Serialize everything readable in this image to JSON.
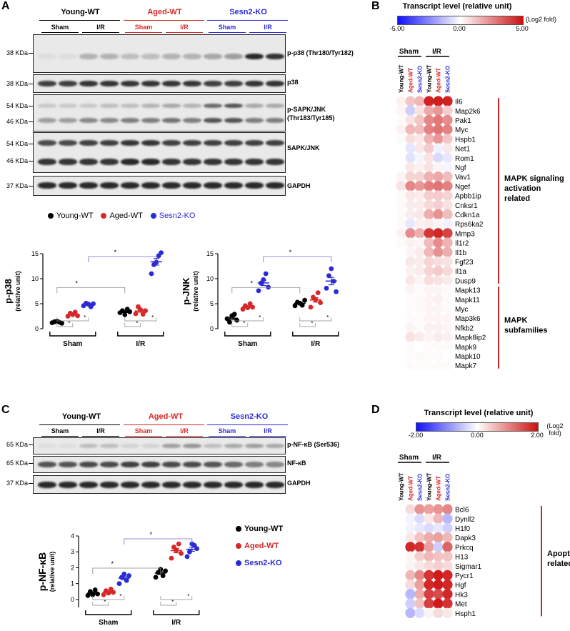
{
  "panel_letters": {
    "a": "A",
    "b": "B",
    "c": "C",
    "d": "D"
  },
  "colors": {
    "young": "#000000",
    "aged": "#d62828",
    "ko": "#2b2bd6"
  },
  "panel_a": {
    "groups": [
      "Young-WT",
      "Aged-WT",
      "Sesn2-KO"
    ],
    "conditions": [
      "Sham",
      "I/R"
    ],
    "blots": [
      {
        "kda": [
          "38 KDa"
        ],
        "label": "p-p38 (Thr180/Tyr182)"
      },
      {
        "kda": [
          "38 KDa"
        ],
        "label": "p38"
      },
      {
        "kda": [
          "54 KDa",
          "46 KDa"
        ],
        "label": "p-SAPK/JNK",
        "label2": "(Thr183/Tyr185)"
      },
      {
        "kda": [
          "54 KDa",
          "46 KDa"
        ],
        "label": "SAPK/JNK"
      },
      {
        "kda": [
          "37 KDa"
        ],
        "label": "GAPDH"
      }
    ],
    "legend": [
      "Young-WT",
      "Aged-WT",
      "Sesn2-KO"
    ]
  },
  "panel_c": {
    "groups": [
      "Young-WT",
      "Aged-WT",
      "Sesn2-KO"
    ],
    "conditions": [
      "Sham",
      "I/R"
    ],
    "blots": [
      {
        "kda": "65 KDa",
        "label": "p-NF-κB (Ser536)"
      },
      {
        "kda": "65 KDa",
        "label": "NF-κB"
      },
      {
        "kda": "37 KDa",
        "label": "GAPDH"
      }
    ],
    "legend": [
      "Young-WT",
      "Aged-WT",
      "Sesn2-KO"
    ]
  },
  "chart_data": [
    {
      "type": "scatter",
      "title": "p-p38",
      "ylabel": "p-p38 (relative unit)",
      "ylim": [
        0,
        15
      ],
      "yticks": [
        "0",
        "5",
        "10",
        "15"
      ],
      "categories": [
        "Sham",
        "I/R"
      ],
      "series": [
        {
          "name": "Young-WT",
          "sham": [
            1.2,
            1.4,
            1.5,
            1.3,
            1.1
          ],
          "ir": [
            3.2,
            3.6,
            2.8,
            3.9,
            3.4
          ]
        },
        {
          "name": "Aged-WT",
          "sham": [
            2.5,
            3.1,
            2.8,
            3.3,
            2.6
          ],
          "ir": [
            3.0,
            4.4,
            3.8,
            2.9,
            3.6
          ]
        },
        {
          "name": "Sesn2-KO",
          "sham": [
            4.6,
            5.1,
            4.9,
            4.4,
            5.0
          ],
          "ir": [
            11.0,
            12.8,
            13.3,
            14.6,
            15.2
          ]
        }
      ],
      "sig": "*"
    },
    {
      "type": "scatter",
      "title": "p-JNK",
      "ylabel": "p-JNK (relative unit)",
      "ylim": [
        0,
        15
      ],
      "yticks": [
        "0",
        "5",
        "10",
        "15"
      ],
      "categories": [
        "Sham",
        "I/R"
      ],
      "series": [
        {
          "name": "Young-WT",
          "sham": [
            2.0,
            1.3,
            2.6,
            2.9,
            1.7
          ],
          "ir": [
            4.6,
            5.3,
            5.1,
            4.7,
            5.7
          ]
        },
        {
          "name": "Aged-WT",
          "sham": [
            3.9,
            4.6,
            4.2,
            5.0,
            4.3
          ],
          "ir": [
            4.3,
            6.3,
            5.8,
            7.2,
            5.2
          ]
        },
        {
          "name": "Sesn2-KO",
          "sham": [
            7.6,
            9.1,
            9.8,
            11.0,
            8.3
          ],
          "ir": [
            8.1,
            10.6,
            12.0,
            9.5,
            7.4
          ]
        }
      ],
      "sig": "*"
    },
    {
      "type": "scatter",
      "title": "p-NF-κB",
      "ylabel": "p-NF-κB (relative unit)",
      "ylim": [
        -0.5,
        4
      ],
      "yticks": [
        "0",
        "1",
        "2",
        "3",
        "4"
      ],
      "categories": [
        "Sham",
        "I/R"
      ],
      "series": [
        {
          "name": "Young-WT",
          "sham": [
            0.25,
            0.5,
            0.3,
            0.6,
            0.35
          ],
          "ir": [
            1.4,
            1.7,
            1.9,
            1.5,
            1.8
          ]
        },
        {
          "name": "Aged-WT",
          "sham": [
            0.3,
            0.55,
            0.4,
            0.65,
            0.45
          ],
          "ir": [
            2.6,
            3.3,
            3.1,
            3.5,
            2.9
          ]
        },
        {
          "name": "Sesn2-KO",
          "sham": [
            1.0,
            1.4,
            1.6,
            1.2,
            1.5
          ],
          "ir": [
            2.7,
            3.0,
            3.5,
            3.4,
            3.2
          ]
        }
      ],
      "sig": "*"
    },
    {
      "type": "heatmap",
      "title": "Transcript level (relative unit)",
      "unit": "(Log2 fold)",
      "scale_labels": [
        "-5.00",
        "0.00",
        "5.00"
      ],
      "vmin": -5,
      "vmax": 5,
      "columns": [
        "Young-WT",
        "Aged-WT",
        "Sesn2-KO",
        "Young-WT",
        "Aged-WT",
        "Sesn2-KO"
      ],
      "column_groups": [
        "Sham",
        "I/R"
      ],
      "rows": [
        "Il6",
        "Map2k6",
        "Pak1",
        "Myc",
        "Hspb1",
        "Net1",
        "Rom1",
        "Ngf",
        "Vav1",
        "Ngef",
        "Apbb1ip",
        "Cnksr1",
        "Cdkn1a",
        "Rps6ka2",
        "Mmp3",
        "Il1r2",
        "Il1b",
        "Fgf23",
        "Il1a",
        "Dusp9",
        "Mapk13",
        "Mapk11",
        "Myc",
        "Map3k6",
        "Nfkb2",
        "Mapk8ip2",
        "Mapk9",
        "Mapk10",
        "Mapk7"
      ],
      "values": [
        [
          0.3,
          1.2,
          1.5,
          4.6,
          4.7,
          4.6
        ],
        [
          0.2,
          -1.0,
          0.6,
          1.8,
          2.2,
          1.0
        ],
        [
          0.1,
          0.6,
          1.2,
          2.5,
          2.8,
          2.4
        ],
        [
          0.3,
          1.5,
          1.4,
          2.6,
          2.9,
          2.6
        ],
        [
          0.1,
          0.7,
          0.5,
          1.6,
          2.2,
          1.2
        ],
        [
          0.0,
          -0.5,
          0.5,
          1.1,
          -0.3,
          0.5
        ],
        [
          0.0,
          -0.6,
          -0.2,
          0.6,
          -0.8,
          -0.5
        ],
        [
          0.0,
          0.5,
          0.3,
          0.6,
          0.2,
          -0.2
        ],
        [
          0.2,
          0.9,
          0.9,
          1.6,
          1.8,
          1.4
        ],
        [
          0.6,
          2.5,
          2.2,
          2.7,
          2.9,
          2.6
        ],
        [
          0.1,
          0.5,
          0.4,
          1.0,
          1.1,
          0.9
        ],
        [
          0.1,
          0.4,
          0.4,
          0.8,
          1.0,
          0.6
        ],
        [
          0.1,
          0.4,
          0.5,
          1.7,
          2.3,
          1.4
        ],
        [
          0.1,
          -0.5,
          0.3,
          0.4,
          0.2,
          -0.3
        ],
        [
          0.3,
          2.4,
          1.7,
          4.2,
          4.5,
          3.9
        ],
        [
          0.1,
          0.3,
          0.2,
          1.4,
          2.4,
          1.6
        ],
        [
          0.0,
          0.2,
          0.4,
          1.5,
          2.3,
          1.7
        ],
        [
          0.0,
          0.5,
          0.4,
          0.9,
          0.7,
          0.6
        ],
        [
          0.0,
          0.3,
          0.4,
          0.9,
          1.1,
          0.8
        ],
        [
          0.0,
          0.5,
          0.2,
          0.7,
          0.6,
          0.4
        ],
        [
          0.0,
          0.2,
          0.1,
          0.2,
          0.2,
          0.1
        ],
        [
          0.0,
          0.1,
          0.1,
          0.2,
          0.3,
          0.1
        ],
        [
          0.0,
          0.1,
          0.1,
          0.2,
          0.2,
          0.1
        ],
        [
          0.0,
          0.1,
          0.1,
          0.2,
          0.2,
          0.2
        ],
        [
          0.0,
          0.2,
          0.1,
          0.3,
          0.3,
          0.2
        ],
        [
          0.0,
          0.6,
          0.4,
          0.2,
          0.4,
          0.3
        ],
        [
          0.0,
          0.1,
          0.0,
          0.1,
          0.1,
          0.1
        ],
        [
          0.0,
          0.1,
          0.1,
          0.1,
          0.1,
          0.0
        ],
        [
          0.0,
          0.1,
          0.1,
          0.1,
          0.1,
          0.1
        ]
      ],
      "row_groups": [
        {
          "label": "MAPK signaling activation related",
          "from": 0,
          "to": 19
        },
        {
          "label": "MAPK subfamilies",
          "from": 20,
          "to": 28
        }
      ]
    },
    {
      "type": "heatmap",
      "title": "Transcript level (relative unit)",
      "unit": "(Log2 fold)",
      "scale_labels": [
        "-2.00",
        "0.00",
        "2.00"
      ],
      "vmin": -2,
      "vmax": 2,
      "columns": [
        "Young-WT",
        "Aged-WT",
        "Sesn2-KO",
        "Young-WT",
        "Aged-WT",
        "Sesn2-KO"
      ],
      "column_groups": [
        "Sham",
        "I/R"
      ],
      "rows": [
        "Bcl6",
        "Dynll2",
        "H1f0",
        "Dapk3",
        "Prkcq",
        "H13",
        "Sigmar1",
        "Pycr1",
        "Hgf",
        "Hk3",
        "Met",
        "Hsph1"
      ],
      "values": [
        [
          0.0,
          0.3,
          0.9,
          0.8,
          0.9,
          1.0
        ],
        [
          0.0,
          -0.1,
          -0.3,
          0.2,
          0.6,
          -0.6
        ],
        [
          0.0,
          -0.1,
          -0.2,
          -0.3,
          -0.2,
          -0.4
        ],
        [
          0.0,
          0.2,
          0.5,
          0.7,
          0.8,
          0.6
        ],
        [
          0.0,
          1.8,
          1.7,
          0.8,
          -0.4,
          1.3
        ],
        [
          0.0,
          0.1,
          0.4,
          0.6,
          0.5,
          0.5
        ],
        [
          0.0,
          0.1,
          0.2,
          0.3,
          0.4,
          0.3
        ],
        [
          0.0,
          0.6,
          1.0,
          1.7,
          1.9,
          1.8
        ],
        [
          0.0,
          0.3,
          0.8,
          1.8,
          1.9,
          1.8
        ],
        [
          0.0,
          -0.6,
          0.7,
          1.6,
          1.5,
          1.8
        ],
        [
          0.0,
          -0.4,
          0.5,
          1.6,
          1.9,
          1.7
        ],
        [
          0.0,
          -0.6,
          -0.3,
          0.1,
          0.3,
          0.2
        ]
      ],
      "row_groups": [
        {
          "label": "Apoptosis related",
          "from": 0,
          "to": 11
        }
      ]
    }
  ]
}
